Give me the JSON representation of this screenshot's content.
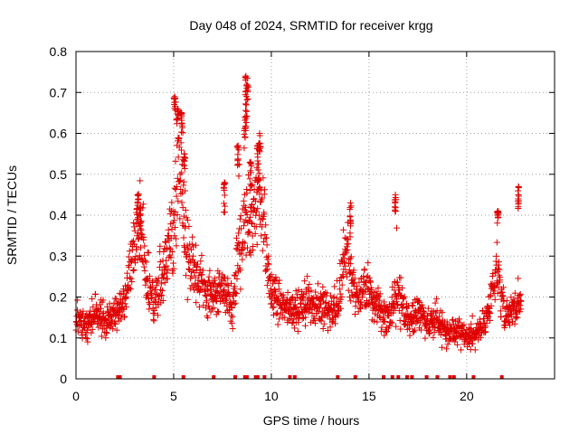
{
  "chart_data": {
    "type": "scatter",
    "title": "Day 048 of 2024, SRMTID for receiver krgg",
    "xlabel": "GPS time / hours",
    "ylabel": "SRMTID / TECUs",
    "xlim": [
      0,
      24.5
    ],
    "ylim": [
      0,
      0.8
    ],
    "x_ticks": [
      0,
      5,
      10,
      15,
      20
    ],
    "x_tick_labels": [
      "0",
      "5",
      "10",
      "15",
      "20"
    ],
    "y_ticks": [
      0,
      0.1,
      0.2,
      0.3,
      0.4,
      0.5,
      0.6,
      0.7,
      0.8
    ],
    "y_tick_labels": [
      "0",
      "0.1",
      "0.2",
      "0.3",
      "0.4",
      "0.5",
      "0.6",
      "0.7",
      "0.8"
    ],
    "grid": true,
    "marker": "plus",
    "color": "#e00000",
    "series": [
      {
        "name": "SRMTID",
        "trend": [
          [
            0.0,
            0.15
          ],
          [
            0.5,
            0.13
          ],
          [
            1.0,
            0.17
          ],
          [
            1.5,
            0.14
          ],
          [
            2.0,
            0.16
          ],
          [
            2.5,
            0.19
          ],
          [
            3.0,
            0.32
          ],
          [
            3.3,
            0.38
          ],
          [
            3.6,
            0.25
          ],
          [
            4.0,
            0.18
          ],
          [
            4.5,
            0.26
          ],
          [
            5.0,
            0.36
          ],
          [
            5.3,
            0.52
          ],
          [
            5.6,
            0.33
          ],
          [
            6.0,
            0.27
          ],
          [
            6.5,
            0.23
          ],
          [
            7.0,
            0.2
          ],
          [
            7.5,
            0.22
          ],
          [
            8.0,
            0.17
          ],
          [
            8.3,
            0.3
          ],
          [
            8.7,
            0.4
          ],
          [
            9.0,
            0.38
          ],
          [
            9.4,
            0.45
          ],
          [
            9.8,
            0.27
          ],
          [
            10.2,
            0.2
          ],
          [
            11.0,
            0.17
          ],
          [
            12.0,
            0.19
          ],
          [
            13.0,
            0.16
          ],
          [
            13.5,
            0.2
          ],
          [
            13.8,
            0.31
          ],
          [
            14.3,
            0.2
          ],
          [
            15.0,
            0.22
          ],
          [
            15.5,
            0.17
          ],
          [
            16.0,
            0.14
          ],
          [
            16.5,
            0.22
          ],
          [
            17.0,
            0.14
          ],
          [
            17.5,
            0.16
          ],
          [
            18.0,
            0.13
          ],
          [
            18.5,
            0.15
          ],
          [
            19.0,
            0.11
          ],
          [
            19.5,
            0.12
          ],
          [
            20.0,
            0.1
          ],
          [
            20.5,
            0.11
          ],
          [
            21.0,
            0.14
          ],
          [
            21.3,
            0.22
          ],
          [
            21.6,
            0.25
          ],
          [
            22.0,
            0.15
          ],
          [
            22.5,
            0.18
          ],
          [
            22.8,
            0.2
          ]
        ],
        "peaks": [
          [
            3.15,
            0.45
          ],
          [
            3.3,
            0.42
          ],
          [
            5.05,
            0.69
          ],
          [
            5.2,
            0.66
          ],
          [
            5.4,
            0.65
          ],
          [
            5.55,
            0.55
          ],
          [
            8.7,
            0.74
          ],
          [
            8.75,
            0.72
          ],
          [
            8.65,
            0.64
          ],
          [
            9.4,
            0.6
          ],
          [
            9.3,
            0.57
          ],
          [
            8.95,
            0.53
          ],
          [
            16.35,
            0.45
          ],
          [
            14.05,
            0.43
          ],
          [
            21.6,
            0.41
          ],
          [
            22.65,
            0.47
          ],
          [
            7.6,
            0.48
          ],
          [
            8.3,
            0.57
          ]
        ],
        "zero_values_x": [
          2.15,
          2.25,
          4.0,
          5.5,
          7.05,
          8.15,
          8.65,
          8.75,
          9.2,
          9.3,
          9.65,
          10.95,
          11.2,
          13.4,
          14.3,
          15.75,
          16.2,
          16.5,
          16.95,
          17.2,
          17.95,
          18.5,
          19.15,
          19.35,
          20.35,
          21.8
        ]
      }
    ]
  }
}
